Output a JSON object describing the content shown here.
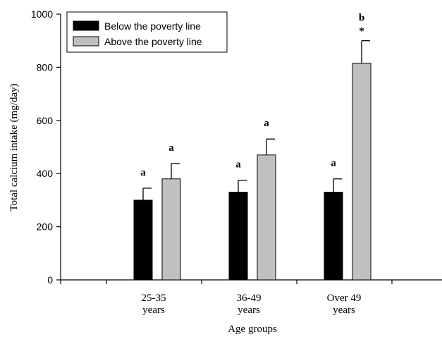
{
  "chart_data": {
    "type": "bar",
    "title": "",
    "xlabel": "Age groups",
    "ylabel": "Total calcium intake (mg/day)",
    "ylim": [
      0,
      1000
    ],
    "yticks": [
      0,
      200,
      400,
      600,
      800,
      1000
    ],
    "categories": [
      [
        "25-35",
        "years"
      ],
      [
        "36-49",
        "years"
      ],
      [
        "Over 49",
        "years"
      ]
    ],
    "legend_position": "top-left",
    "series": [
      {
        "name": "Below the poverty line",
        "color": "#000000",
        "values": [
          300,
          330,
          330
        ],
        "errors": [
          45,
          45,
          50
        ],
        "letters": [
          "a",
          "a",
          "a"
        ],
        "asterisks": [
          "",
          "",
          ""
        ]
      },
      {
        "name": "Above the poverty line",
        "color": "#c0c0c0",
        "values": [
          380,
          470,
          815
        ],
        "errors": [
          58,
          60,
          85
        ],
        "letters": [
          "a",
          "a",
          "b"
        ],
        "asterisks": [
          "",
          "",
          "*"
        ]
      }
    ]
  }
}
